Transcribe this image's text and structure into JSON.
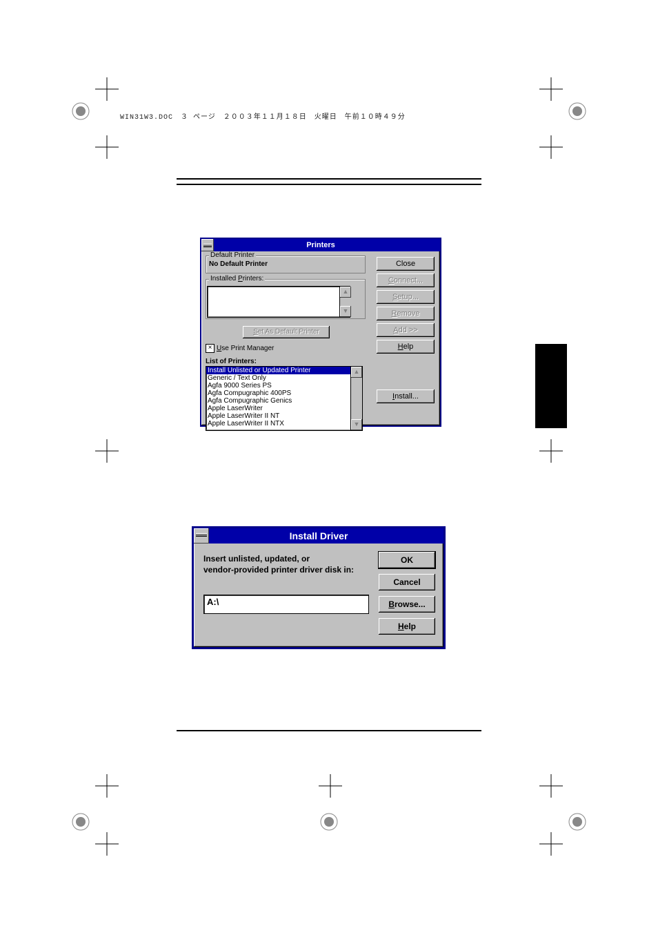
{
  "page_header": "WIN31W3.DOC　３ ページ　２００３年１１月１８日　火曜日　午前１０時４９分",
  "colors": {
    "titlebar_bg": "#0000a8",
    "titlebar_fg": "#ffffff",
    "face": "#c0c0c0",
    "highlight_bg": "#0000a8",
    "highlight_fg": "#ffffff",
    "dialog_border": "#00008b"
  },
  "printers_dialog": {
    "title": "Printers",
    "default_printer_group": "Default Printer",
    "default_printer_value": "No Default Printer",
    "installed_group": "Installed Printers:",
    "set_default_btn": "Set As Default Printer",
    "use_pm_label": "Use Print Manager",
    "use_pm_checked": true,
    "list_label": "List of Printers:",
    "list": [
      "Install Unlisted or Updated Printer",
      "Generic / Text Only",
      "Agfa 9000 Series PS",
      "Agfa Compugraphic 400PS",
      "Agfa Compugraphic Genics",
      "Apple LaserWriter",
      "Apple LaserWriter II NT",
      "Apple LaserWriter II NTX"
    ],
    "selected_index": 0,
    "buttons": {
      "close": "Close",
      "connect": "Connect...",
      "setup": "Setup...",
      "remove": "Remove",
      "add": "Add >>",
      "help": "Help",
      "install": "Install..."
    }
  },
  "install_dialog": {
    "title": "Install Driver",
    "prompt_line1": "Insert unlisted, updated, or",
    "prompt_line2": "vendor-provided printer driver disk in:",
    "path_value": "A:\\",
    "buttons": {
      "ok": "OK",
      "cancel": "Cancel",
      "browse": "Browse...",
      "help": "Help"
    }
  }
}
